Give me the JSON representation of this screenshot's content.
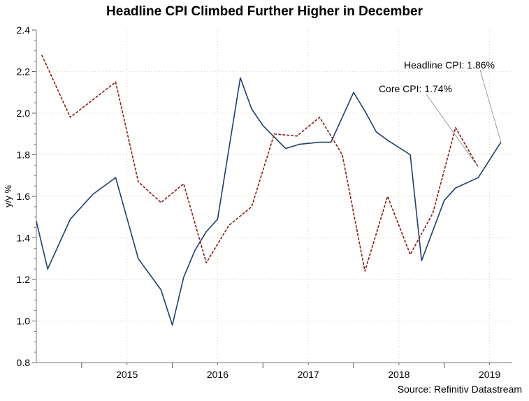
{
  "chart_data": {
    "type": "line",
    "title": "Headline CPI Climbed Further Higher in December",
    "ylabel": "y/y %",
    "xlabel": "",
    "ylim": [
      0.8,
      2.4
    ],
    "yticks": [
      "0.8",
      "1.0",
      "1.2",
      "1.4",
      "1.6",
      "1.8",
      "2.0",
      "2.2",
      "2.4"
    ],
    "year_ticks": [
      2015,
      2016,
      2017,
      2018,
      2019
    ],
    "year_labels": [
      "2015",
      "2016",
      "2017",
      "2018",
      "2019"
    ],
    "grid": true,
    "series": [
      {
        "name": "Headline CPI",
        "color": "#1f3f6e",
        "dash": "solid",
        "x": [
          2014.5,
          2014.625,
          2014.875,
          2015.125,
          2015.375,
          2015.625,
          2015.875,
          2016.0,
          2016.125,
          2016.25,
          2016.375,
          2016.5,
          2016.75,
          2016.875,
          2017.0,
          2017.25,
          2017.4,
          2017.625,
          2017.75,
          2018.0,
          2018.125,
          2018.25,
          2018.375,
          2018.625,
          2018.75,
          2019.0,
          2019.125,
          2019.375,
          2019.625
        ],
        "values": [
          1.48,
          1.25,
          1.49,
          1.61,
          1.69,
          1.3,
          1.15,
          0.98,
          1.21,
          1.34,
          1.43,
          1.49,
          2.17,
          2.02,
          1.94,
          1.83,
          1.85,
          1.86,
          1.86,
          2.1,
          2.01,
          1.91,
          1.87,
          1.8,
          1.29,
          1.58,
          1.64,
          1.69,
          1.86
        ]
      },
      {
        "name": "Core CPI",
        "color": "#8b1a1a",
        "dash": "dashed",
        "x": [
          2014.56,
          2014.875,
          2015.375,
          2015.625,
          2015.875,
          2016.125,
          2016.375,
          2016.625,
          2016.875,
          2017.125,
          2017.375,
          2017.625,
          2017.875,
          2018.125,
          2018.375,
          2018.625,
          2018.875,
          2019.125,
          2019.375
        ],
        "values": [
          2.28,
          1.98,
          2.15,
          1.67,
          1.57,
          1.66,
          1.28,
          1.46,
          1.55,
          1.9,
          1.89,
          1.98,
          1.8,
          1.24,
          1.6,
          1.32,
          1.52,
          1.93,
          1.74
        ]
      }
    ],
    "annotations": [
      {
        "text": "Headline CPI: 1.86%",
        "series": "Headline CPI"
      },
      {
        "text": "Core CPI: 1.74%",
        "series": "Core CPI"
      }
    ]
  },
  "footer": {
    "source": "Source: Refinitiv Datastream"
  }
}
